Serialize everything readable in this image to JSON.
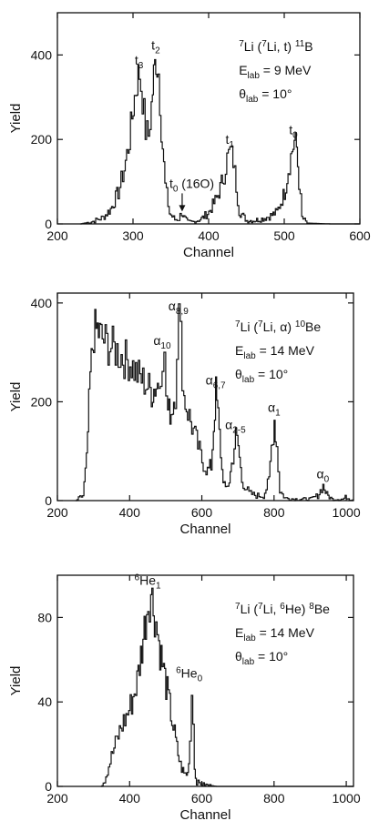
{
  "chart_data": [
    {
      "type": "line",
      "xlabel": "Channel",
      "ylabel": "Yield",
      "xlim": [
        200,
        600
      ],
      "ylim": [
        0,
        500
      ],
      "xticks": [
        200,
        300,
        400,
        500,
        600
      ],
      "yticks": [
        0,
        200,
        400
      ],
      "reaction": {
        "pre": "7",
        "a": "Li (",
        "b": "7",
        "c": "Li, t) ",
        "d": "11",
        "e": "B"
      },
      "energy": {
        "main": "E",
        "sub": "lab",
        "value": " = 9 MeV"
      },
      "angle": {
        "main": "θ",
        "sub": "lab",
        "value": " = 10°"
      },
      "peaks": [
        {
          "label": "t",
          "sub": "3",
          "x": 308,
          "y": 360
        },
        {
          "label": "t",
          "sub": "2",
          "x": 330,
          "y": 395
        },
        {
          "label": "t",
          "sub": "0",
          "extra": " (16O)",
          "x": 365,
          "y": 25
        },
        {
          "label": "t",
          "sub": "1",
          "x": 428,
          "y": 172
        },
        {
          "label": "t",
          "sub": "0",
          "x": 512,
          "y": 195
        }
      ],
      "series": [
        {
          "x": [
            230,
            245,
            260,
            270,
            280,
            288,
            295,
            300,
            305,
            308,
            312,
            316,
            320,
            324,
            327,
            330,
            333,
            337,
            342,
            348,
            355,
            360,
            364,
            367,
            372,
            380,
            390,
            400,
            410,
            415,
            420,
            424,
            428,
            432,
            436,
            440,
            450,
            460,
            470,
            480,
            490,
            500,
            505,
            510,
            513,
            516,
            519,
            523,
            530,
            560,
            600
          ],
          "y": [
            0,
            5,
            15,
            35,
            75,
            130,
            200,
            280,
            340,
            358,
            300,
            220,
            210,
            280,
            350,
            395,
            360,
            230,
            90,
            25,
            10,
            12,
            28,
            15,
            5,
            5,
            12,
            28,
            60,
            85,
            120,
            155,
            172,
            150,
            90,
            30,
            8,
            8,
            12,
            18,
            28,
            75,
            130,
            175,
            195,
            180,
            100,
            15,
            2,
            0,
            0
          ]
        }
      ]
    },
    {
      "type": "line",
      "xlabel": "Channel",
      "ylabel": "Yield",
      "xlim": [
        200,
        1020
      ],
      "ylim": [
        0,
        420
      ],
      "xticks": [
        200,
        400,
        600,
        800,
        1000
      ],
      "yticks": [
        0,
        200,
        400
      ],
      "reaction": {
        "pre": "7",
        "a": "Li (",
        "b": "7",
        "c": "Li, α) ",
        "d": "10",
        "e": "Be"
      },
      "energy": {
        "main": "E",
        "sub": "lab",
        "value": " = 14 MeV"
      },
      "angle": {
        "main": "θ",
        "sub": "lab",
        "value": " = 10°"
      },
      "peaks": [
        {
          "label": "α",
          "sub": "10",
          "x": 490,
          "y": 300
        },
        {
          "label": "α",
          "sub": "8,9",
          "x": 535,
          "y": 370
        },
        {
          "label": "α",
          "sub": "6,7",
          "x": 638,
          "y": 220
        },
        {
          "label": "α",
          "sub": "2-5",
          "x": 693,
          "y": 130
        },
        {
          "label": "α",
          "sub": "1",
          "x": 800,
          "y": 165
        },
        {
          "label": "α",
          "sub": "0",
          "x": 935,
          "y": 30
        }
      ],
      "series": [
        {
          "x": [
            250,
            270,
            280,
            290,
            300,
            310,
            320,
            340,
            360,
            380,
            400,
            420,
            440,
            460,
            470,
            480,
            485,
            490,
            495,
            500,
            505,
            515,
            525,
            530,
            535,
            540,
            545,
            550,
            560,
            580,
            600,
            615,
            625,
            632,
            638,
            644,
            655,
            665,
            675,
            685,
            693,
            700,
            710,
            730,
            750,
            770,
            785,
            792,
            800,
            806,
            815,
            830,
            860,
            900,
            920,
            935,
            945,
            960,
            990,
            1000,
            1005,
            1020
          ],
          "y": [
            0,
            10,
            80,
            250,
            340,
            345,
            330,
            315,
            305,
            290,
            280,
            255,
            240,
            220,
            230,
            240,
            270,
            300,
            280,
            215,
            180,
            180,
            220,
            320,
            375,
            330,
            260,
            210,
            180,
            130,
            80,
            60,
            70,
            150,
            220,
            170,
            60,
            20,
            40,
            90,
            130,
            110,
            40,
            15,
            10,
            10,
            40,
            110,
            165,
            110,
            20,
            5,
            3,
            3,
            10,
            30,
            12,
            3,
            3,
            8,
            5,
            0
          ]
        }
      ]
    },
    {
      "type": "line",
      "xlabel": "Channel",
      "ylabel": "Yield",
      "xlim": [
        200,
        1020
      ],
      "ylim": [
        0,
        100
      ],
      "xticks": [
        200,
        400,
        600,
        800,
        1000
      ],
      "yticks": [
        0,
        40,
        80
      ],
      "reaction": {
        "pre": "7",
        "a": "Li (",
        "b": "7",
        "c": "Li, ",
        "f": "6",
        "g": "He) ",
        "d": "8",
        "e": "Be"
      },
      "energy": {
        "main": "E",
        "sub": "lab",
        "value": " = 14 MeV"
      },
      "angle": {
        "main": "θ",
        "sub": "lab",
        "value": " = 10°"
      },
      "peaks": [
        {
          "label": "He",
          "pre": "6",
          "sub": "1",
          "x": 460,
          "y": 92
        },
        {
          "label": "He",
          "pre": "6",
          "sub": "0",
          "x": 575,
          "y": 48
        }
      ],
      "series": [
        {
          "x": [
            320,
            330,
            345,
            360,
            375,
            390,
            405,
            420,
            430,
            440,
            450,
            458,
            465,
            472,
            480,
            490,
            500,
            510,
            520,
            530,
            540,
            550,
            560,
            566,
            571,
            575,
            579,
            585,
            600,
            640,
            700,
            1020
          ],
          "y": [
            0,
            3,
            12,
            20,
            28,
            33,
            40,
            50,
            62,
            75,
            88,
            92,
            85,
            78,
            68,
            58,
            48,
            38,
            28,
            18,
            10,
            6,
            6,
            22,
            45,
            35,
            8,
            2,
            1,
            0,
            0,
            0
          ]
        }
      ]
    }
  ]
}
